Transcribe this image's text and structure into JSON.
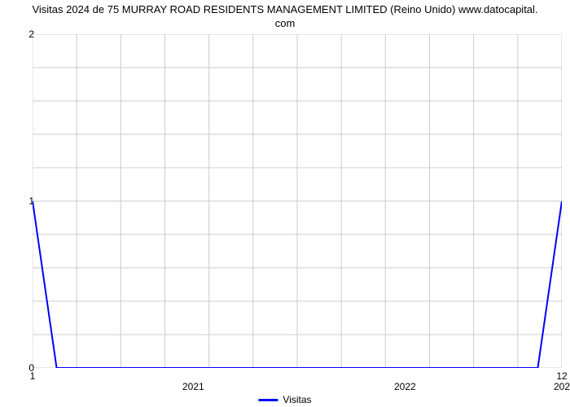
{
  "chart": {
    "type": "line",
    "title_line1": "Visitas 2024 de 75 MURRAY ROAD RESIDENTS MANAGEMENT LIMITED (Reino Unido) www.datocapital.",
    "title_line2": "com",
    "title_fontsize": 13,
    "title_color": "#000000",
    "background_color": "#ffffff",
    "plot_background": "#ffffff",
    "grid_color": "#cccccc",
    "grid_width": 1,
    "axis_color": "#000000",
    "line_color": "#0000ff",
    "line_width": 2,
    "x_domain": [
      1,
      12
    ],
    "y_domain": [
      0,
      2
    ],
    "y_ticks": [
      0,
      1,
      2
    ],
    "x_end_labels": [
      {
        "value": 1,
        "label": "1"
      },
      {
        "value": 12,
        "label": "12"
      }
    ],
    "x_major_labels": [
      {
        "value": 4.34,
        "label": "2021"
      },
      {
        "value": 8.74,
        "label": "2022"
      },
      {
        "value": 12,
        "label": "202"
      }
    ],
    "x_minor_ticks": 45,
    "x_grid_count": 12,
    "y_grid_count": 10,
    "data_points": [
      {
        "x": 1.0,
        "y": 1.0
      },
      {
        "x": 1.5,
        "y": 0.0
      },
      {
        "x": 11.5,
        "y": 0.0
      },
      {
        "x": 12.0,
        "y": 1.0
      }
    ],
    "legend": {
      "label": "Visitas",
      "color": "#0000ff",
      "fontsize": 12
    },
    "label_fontsize": 12
  }
}
